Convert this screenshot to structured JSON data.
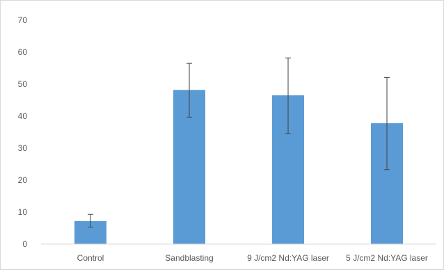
{
  "chart_data": {
    "type": "bar",
    "title": "",
    "xlabel": "",
    "ylabel": "",
    "categories": [
      "Control",
      "Sandblasting",
      "9 J/cm2 Nd:YAG laser",
      "5 J/cm2 Nd:YAG laser"
    ],
    "values": [
      7.2,
      48.2,
      46.5,
      37.8
    ],
    "error_low": [
      5.3,
      39.7,
      34.5,
      23.3
    ],
    "error_high": [
      9.3,
      56.5,
      58.2,
      52.1
    ],
    "ylim": [
      0,
      70
    ],
    "yticks": [
      0,
      10,
      20,
      30,
      40,
      50,
      60,
      70
    ],
    "grid": false,
    "legend": "none",
    "bar_color": "#5b9bd5",
    "error_bar_color": "#404040",
    "axis_color": "#d9d9d9"
  }
}
